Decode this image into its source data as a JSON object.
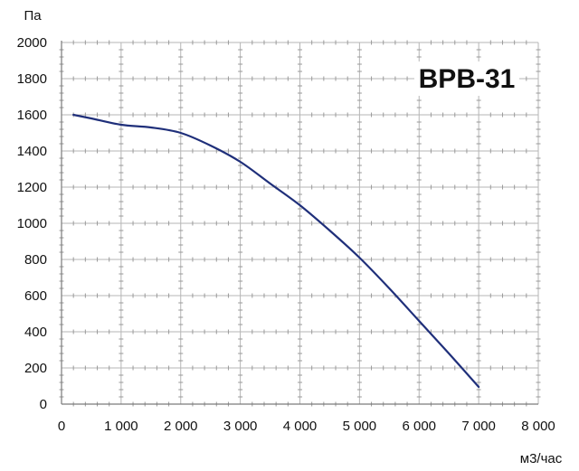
{
  "chart_data": {
    "type": "line",
    "title": "ВРВ-31",
    "xlabel": "м3/час",
    "ylabel": "Па",
    "xlim": [
      0,
      8000
    ],
    "ylim": [
      0,
      2000
    ],
    "x_ticks": [
      0,
      1000,
      2000,
      3000,
      4000,
      5000,
      6000,
      7000,
      8000
    ],
    "x_tick_labels": [
      "0",
      "1 000",
      "2 000",
      "3 000",
      "4 000",
      "5 000",
      "6 000",
      "7 000",
      "8 000"
    ],
    "y_ticks": [
      0,
      200,
      400,
      600,
      800,
      1000,
      1200,
      1400,
      1600,
      1800,
      2000
    ],
    "y_tick_labels": [
      "0",
      "200",
      "400",
      "600",
      "800",
      "1000",
      "1200",
      "1400",
      "1600",
      "1800",
      "2000"
    ],
    "grid": true,
    "series": [
      {
        "color": "#1f2f7a",
        "x": [
          200,
          500,
          1000,
          1500,
          2000,
          2500,
          3000,
          3500,
          4000,
          4500,
          5000,
          5500,
          6000,
          6500,
          7000
        ],
        "y": [
          1600,
          1580,
          1545,
          1530,
          1500,
          1430,
          1340,
          1220,
          1100,
          960,
          810,
          640,
          460,
          280,
          95
        ]
      }
    ]
  }
}
